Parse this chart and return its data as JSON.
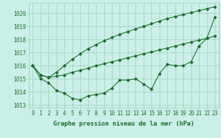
{
  "title": "Graphe pression niveau de la mer (hPa)",
  "bg_color": "#cceee8",
  "grid_color": "#99ccbb",
  "line_color": "#1a6b2a",
  "marker_color": "#1a6b2a",
  "ylim": [
    1012.8,
    1020.8
  ],
  "xlim": [
    -0.5,
    23.5
  ],
  "yticks": [
    1013,
    1014,
    1015,
    1016,
    1017,
    1018,
    1019,
    1020
  ],
  "xticks": [
    0,
    1,
    2,
    3,
    4,
    5,
    6,
    7,
    8,
    9,
    10,
    11,
    12,
    13,
    14,
    15,
    16,
    17,
    18,
    19,
    20,
    21,
    22,
    23
  ],
  "main_y": [
    1016.0,
    1015.0,
    1014.7,
    1014.1,
    1013.9,
    1013.5,
    1013.4,
    1013.7,
    1013.8,
    1013.9,
    1014.3,
    1014.9,
    1014.9,
    1015.0,
    1014.6,
    1014.2,
    1015.4,
    1016.1,
    1016.0,
    1016.0,
    1016.3,
    1017.5,
    1018.1,
    1019.7
  ],
  "upper_y": [
    1016.0,
    1015.3,
    1015.1,
    1015.2,
    1015.3,
    1015.5,
    1015.65,
    1015.8,
    1016.0,
    1016.15,
    1016.3,
    1016.45,
    1016.6,
    1016.75,
    1016.9,
    1017.05,
    1017.2,
    1017.35,
    1017.5,
    1017.65,
    1017.8,
    1017.95,
    1018.1,
    1018.25
  ],
  "steep_y": [
    1016.0,
    1015.3,
    1015.1,
    1015.5,
    1016.0,
    1016.5,
    1016.9,
    1017.3,
    1017.6,
    1017.9,
    1018.15,
    1018.4,
    1018.6,
    1018.8,
    1019.0,
    1019.2,
    1019.4,
    1019.6,
    1019.75,
    1019.9,
    1020.05,
    1020.2,
    1020.35,
    1020.5
  ],
  "tick_fontsize": 5.5,
  "xlabel_fontsize": 6.5
}
